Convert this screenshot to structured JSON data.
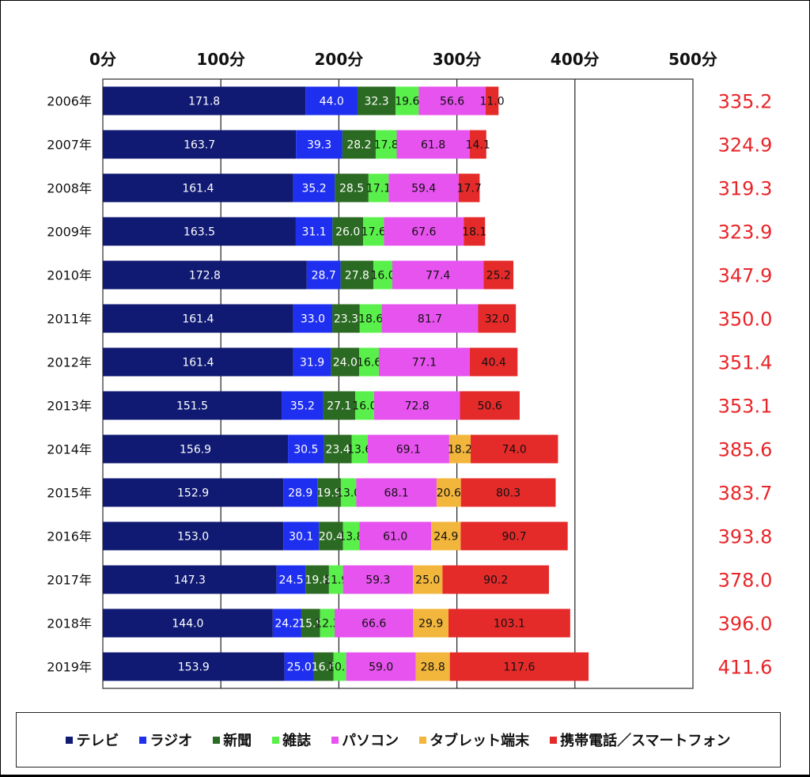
{
  "chart_data": {
    "type": "bar",
    "orientation": "horizontal",
    "stacked": true,
    "xlim": [
      0,
      500
    ],
    "x_ticks": [
      "0分",
      "100分",
      "200分",
      "300分",
      "400分",
      "500分"
    ],
    "x_tick_values": [
      0,
      100,
      200,
      300,
      400,
      500
    ],
    "grid": true,
    "legend_position": "bottom",
    "categories": [
      "2006年",
      "2007年",
      "2008年",
      "2009年",
      "2010年",
      "2011年",
      "2012年",
      "2013年",
      "2014年",
      "2015年",
      "2016年",
      "2017年",
      "2018年",
      "2019年"
    ],
    "series": [
      {
        "name": "テレビ",
        "color": "#101a73",
        "label_color": "#ffffff",
        "values": [
          171.8,
          163.7,
          161.4,
          163.5,
          172.8,
          161.4,
          161.4,
          151.5,
          156.9,
          152.9,
          153.0,
          147.3,
          144.0,
          153.9
        ],
        "labels": [
          "171.8",
          "163.7",
          "161.4",
          "163.5",
          "172.8",
          "161.4",
          "161.4",
          "151.5",
          "156.9",
          "152.9",
          "153.0",
          "147.3",
          "144.0",
          "153.9"
        ]
      },
      {
        "name": "ラジオ",
        "color": "#1f2ff0",
        "label_color": "#ffffff",
        "values": [
          44.0,
          39.3,
          35.2,
          31.1,
          28.7,
          33.0,
          31.9,
          35.2,
          30.5,
          28.9,
          30.1,
          24.5,
          24.2,
          25.0
        ],
        "labels": [
          "44.0",
          "39.3",
          "35.2",
          "31.1",
          "28.7",
          "33.0",
          "31.9",
          "35.2",
          "30.5",
          "28.9",
          "30.1",
          "24.5",
          "24.2",
          "25.0"
        ]
      },
      {
        "name": "新聞",
        "color": "#2b6a22",
        "label_color": "#ffffff",
        "values": [
          32.3,
          28.2,
          28.5,
          26.0,
          27.8,
          23.3,
          24.0,
          27.1,
          23.4,
          19.9,
          20.4,
          19.8,
          15.9,
          16.6
        ],
        "labels": [
          "32.3",
          "28.2",
          "28.5",
          "26.0",
          "27.8",
          "23.3",
          "24.0",
          "27.1",
          "23.4",
          "19.9",
          "20.4",
          "19.8",
          "15.9",
          "16.6"
        ]
      },
      {
        "name": "雑誌",
        "color": "#5af04b",
        "label_color": "#111111",
        "values": [
          19.6,
          17.8,
          17.1,
          17.6,
          16.0,
          18.6,
          16.6,
          16.0,
          13.6,
          13.0,
          13.8,
          11.9,
          12.3,
          10.7
        ],
        "labels": [
          "19.6",
          "17.8",
          "17.1",
          "17.6",
          "16.0",
          "18.6",
          "16.6",
          "16.0",
          "13.6",
          "13.0",
          "13.8",
          "11.9",
          "12.3",
          "10.7"
        ]
      },
      {
        "name": "パソコン",
        "color": "#e653ee",
        "label_color": "#111111",
        "values": [
          56.6,
          61.8,
          59.4,
          67.6,
          77.4,
          81.7,
          77.1,
          72.8,
          69.1,
          68.1,
          61.0,
          59.3,
          66.6,
          59.0
        ],
        "labels": [
          "56.6",
          "61.8",
          "59.4",
          "67.6",
          "77.4",
          "81.7",
          "77.1",
          "72.8",
          "69.1",
          "68.1",
          "61.0",
          "59.3",
          "66.6",
          "59.0"
        ]
      },
      {
        "name": "タブレット端末",
        "color": "#f3b63c",
        "label_color": "#111111",
        "values": [
          0,
          0,
          0,
          0,
          0,
          0,
          0,
          0,
          18.2,
          20.6,
          24.9,
          25.0,
          29.9,
          28.8
        ],
        "labels": [
          "",
          "",
          "",
          "",
          "",
          "",
          "",
          "",
          "18.2",
          "20.6",
          "24.9",
          "25.0",
          "29.9",
          "28.8"
        ]
      },
      {
        "name": "携帯電話／スマートフォン",
        "color": "#e52a2a",
        "label_color": "#111111",
        "values": [
          11.0,
          14.1,
          17.7,
          18.1,
          25.2,
          32.0,
          40.4,
          50.6,
          74.0,
          80.3,
          90.7,
          90.2,
          103.1,
          117.6
        ],
        "labels": [
          "11.0",
          "14.1",
          "17.7",
          "18.1",
          "25.2",
          "32.0",
          "40.4",
          "50.6",
          "74.0",
          "80.3",
          "90.7",
          "90.2",
          "103.1",
          "117.6"
        ]
      }
    ],
    "totals": [
      "335.2",
      "324.9",
      "319.3",
      "323.9",
      "347.9",
      "350.0",
      "351.4",
      "353.1",
      "385.6",
      "383.7",
      "393.8",
      "378.0",
      "396.0",
      "411.6"
    ]
  },
  "legend": {
    "items": [
      {
        "label": "テレビ",
        "color": "#101a73"
      },
      {
        "label": "ラジオ",
        "color": "#1f2ff0"
      },
      {
        "label": "新聞",
        "color": "#2b6a22"
      },
      {
        "label": "雑誌",
        "color": "#5af04b"
      },
      {
        "label": "パソコン",
        "color": "#e653ee"
      },
      {
        "label": "タブレット端末",
        "color": "#f3b63c"
      },
      {
        "label": "携帯電話／スマートフォン",
        "color": "#e52a2a"
      }
    ]
  },
  "colors": {
    "total_text": "#e8262a",
    "grid": "#222222"
  }
}
